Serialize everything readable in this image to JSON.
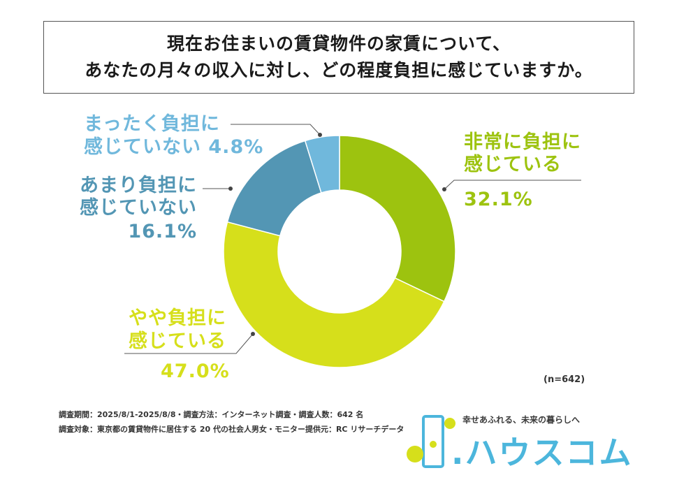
{
  "title": {
    "line1": "現在お住まいの賃貸物件の家賃について、",
    "line2": "あなたの月々の収入に対し、どの程度負担に感じていますか。"
  },
  "chart_data": {
    "type": "pie",
    "donut": true,
    "sample_label": "(n=642)",
    "slices": [
      {
        "label_lines": [
          "非常に負担に",
          "感じている"
        ],
        "value": 32.1,
        "value_label": "32.1%",
        "color": "#9dc30f"
      },
      {
        "label_lines": [
          "やや負担に",
          "感じている"
        ],
        "value": 47.0,
        "value_label": "47.0%",
        "color": "#d6df1b"
      },
      {
        "label_lines": [
          "あまり負担に",
          "感じていない"
        ],
        "value": 16.1,
        "value_label": "16.1%",
        "color": "#5396b4"
      },
      {
        "label_lines": [
          "まったく負担に",
          "感じていない"
        ],
        "value": 4.8,
        "value_label": "4.8%",
        "color": "#70b8dc"
      }
    ]
  },
  "notes": {
    "survey": "調査期間：2025/8/1-2025/8/8・調査方法：インターネット調査・調査人数：642 名",
    "target": "調査対象：東京都の賃貸物件に居住する 20 代の社会人男女・モニター提供元：RC リサーチデータ"
  },
  "logo": {
    "tagline": "幸せあふれる、未来の暮らしへ",
    "brand": ".ハウスコム",
    "accent_color": "#d6df1b",
    "brand_color": "#4cb6dc"
  }
}
